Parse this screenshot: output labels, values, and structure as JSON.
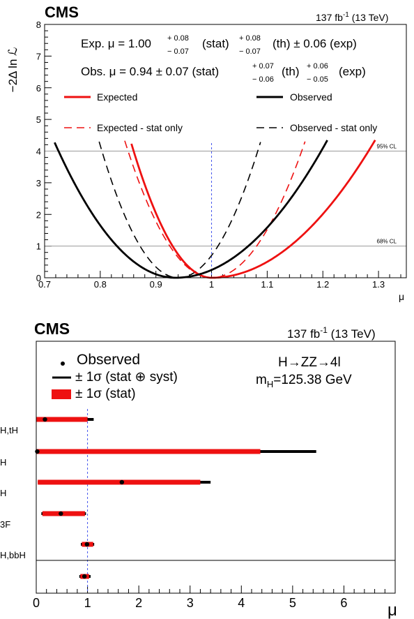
{
  "chart_data": [
    {
      "type": "line",
      "experiment": "CMS",
      "lumi_label": "137 fb",
      "lumi_exp": "-1",
      "lumi_energy": " (13 TeV)",
      "ylabel": "−2Δ ln ℒ",
      "xlabel": "μ",
      "xlim": [
        0.7,
        1.35
      ],
      "ylim": [
        0,
        8
      ],
      "x_ticks": [
        "0.7",
        "0.8",
        "0.9",
        "1",
        "1.1",
        "1.2",
        "1.3"
      ],
      "y_ticks": [
        "0",
        "1",
        "2",
        "3",
        "4",
        "5",
        "6",
        "7",
        "8"
      ],
      "exp_text": {
        "prefix": "Exp. μ = 1.00",
        "stat_up": "+ 0.08",
        "stat_dn": "− 0.07",
        "stat_label": "(stat)",
        "th_up": "+ 0.08",
        "th_dn": "− 0.07",
        "th_label": "(th) ± 0.06 (exp)"
      },
      "obs_text": {
        "prefix": "Obs. μ = 0.94 ± 0.07 (stat)",
        "th_up": "+ 0.07",
        "th_dn": "− 0.06",
        "th_label": "(th)",
        "exp_up": "+ 0.06",
        "exp_dn": "− 0.05",
        "exp_label": "(exp)"
      },
      "reference_lines": [
        {
          "y": 4,
          "label": "95% CL"
        },
        {
          "y": 1,
          "label": "68% CL"
        }
      ],
      "vertical_reference": 1.0,
      "series": [
        {
          "name": "Expected",
          "color": "#ee1111",
          "dash": false,
          "min_x": 1.0,
          "min_y": 0,
          "sig_lo": 0.07,
          "sig_hi": 0.141
        },
        {
          "name": "Observed",
          "color": "#000000",
          "dash": false,
          "min_x": 0.935,
          "min_y": 0,
          "sig_lo": 0.105,
          "sig_hi": 0.131
        },
        {
          "name": "Expected - stat only",
          "color": "#ee1111",
          "dash": true,
          "min_x": 1.0,
          "min_y": 0,
          "sig_lo": 0.075,
          "sig_hi": 0.081
        },
        {
          "name": "Observed - stat only",
          "color": "#000000",
          "dash": true,
          "min_x": 0.94,
          "min_y": 0,
          "sig_lo": 0.0685,
          "sig_hi": 0.0715
        }
      ]
    },
    {
      "type": "dot-whisker",
      "experiment": "CMS",
      "lumi_label": "137 fb",
      "lumi_exp": "-1",
      "lumi_energy": " (13 TeV)",
      "xlabel": "μ",
      "xlim": [
        0,
        7
      ],
      "x_ticks": [
        "0",
        "1",
        "2",
        "3",
        "4",
        "5",
        "6"
      ],
      "legend": {
        "observed": "Observed",
        "total": "± 1σ (stat ⊕ syst)",
        "stat": "± 1σ (stat)"
      },
      "process_text": "H→ZZ→4l",
      "mass_text": "m",
      "mass_sub": "H",
      "mass_value": "=125.38 GeV",
      "vertical_reference": 1.0,
      "stat_color": "#ee1111",
      "rows": [
        {
          "label": "H,tH",
          "value": 0.17,
          "total": [
            0.0,
            1.12
          ],
          "stat": [
            0.0,
            1.0
          ]
        },
        {
          "label": "H",
          "value": 0.02,
          "total": [
            0.0,
            5.46
          ],
          "stat": [
            0.0,
            4.37
          ]
        },
        {
          "label": "H",
          "value": 1.67,
          "total": [
            0.03,
            3.4
          ],
          "stat": [
            0.03,
            3.2
          ]
        },
        {
          "label": "3F",
          "value": 0.48,
          "total": [
            0.1,
            0.97
          ],
          "stat": [
            0.12,
            0.95
          ]
        },
        {
          "label": "H,bbH",
          "value": 0.99,
          "total": [
            0.87,
            1.13
          ],
          "stat": [
            0.89,
            1.11
          ]
        },
        {
          "label": "",
          "value": 0.94,
          "total": [
            0.84,
            1.06
          ],
          "stat": [
            0.86,
            1.03
          ]
        }
      ]
    }
  ]
}
